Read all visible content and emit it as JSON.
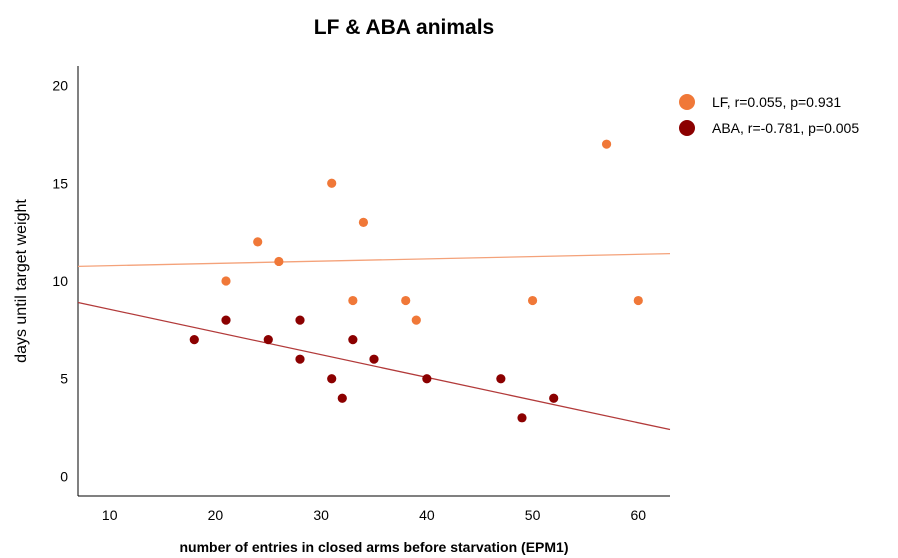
{
  "chart_data": {
    "type": "scatter",
    "title": "LF & ABA animals",
    "xlabel": "number of entries in closed arms before starvation (EPM1)",
    "ylabel": "days until target weight",
    "xlim": [
      7,
      63
    ],
    "ylim": [
      -1,
      21
    ],
    "xticks": [
      10,
      20,
      30,
      40,
      50,
      60
    ],
    "yticks": [
      0,
      5,
      10,
      15,
      20
    ],
    "grid": false,
    "legend_position": "top-right",
    "series": [
      {
        "name": "LF, r=0.055, p=0.931",
        "color": "#f07838",
        "line_color": "#f4a27a",
        "points": [
          [
            21,
            10
          ],
          [
            24,
            12
          ],
          [
            26,
            11
          ],
          [
            31,
            15
          ],
          [
            33,
            9
          ],
          [
            34,
            13
          ],
          [
            38,
            9
          ],
          [
            39,
            8
          ],
          [
            50,
            9
          ],
          [
            57,
            17
          ],
          [
            60,
            9
          ]
        ],
        "fit_line": [
          [
            7,
            10.75
          ],
          [
            63,
            11.4
          ]
        ]
      },
      {
        "name": "ABA, r=-0.781, p=0.005",
        "color": "#8b0000",
        "line_color": "#b23a3a",
        "points": [
          [
            18,
            7
          ],
          [
            21,
            8
          ],
          [
            25,
            7
          ],
          [
            28,
            8
          ],
          [
            28,
            6
          ],
          [
            31,
            5
          ],
          [
            32,
            4
          ],
          [
            33,
            7
          ],
          [
            35,
            6
          ],
          [
            40,
            5
          ],
          [
            47,
            5
          ],
          [
            49,
            3
          ],
          [
            52,
            4
          ]
        ],
        "fit_line": [
          [
            7,
            8.9
          ],
          [
            63,
            2.4
          ]
        ]
      }
    ]
  }
}
